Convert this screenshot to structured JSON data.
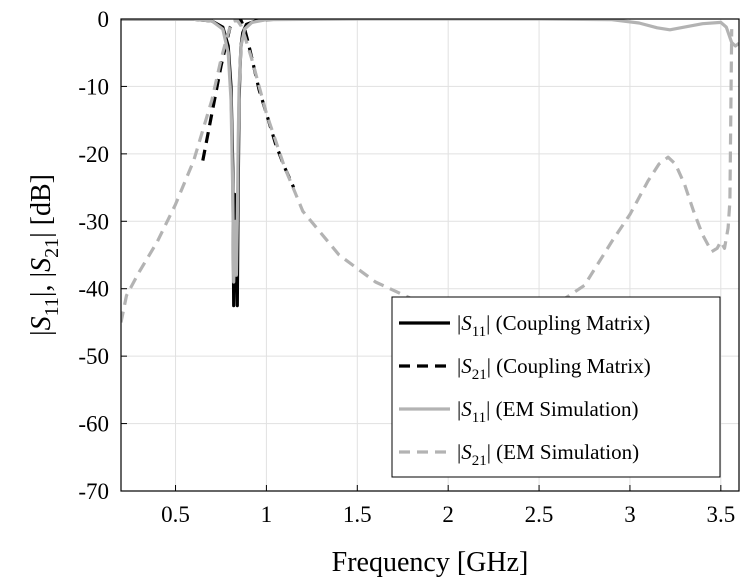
{
  "chart_data": {
    "type": "line",
    "xlabel": "Frequency [GHz]",
    "ylabel": "|S11|, |S21| [dB]",
    "xlim": [
      0.2,
      3.6
    ],
    "ylim": [
      -70,
      0
    ],
    "xticks": [
      0.5,
      1,
      1.5,
      2,
      2.5,
      3,
      3.5
    ],
    "xtick_labels": [
      "0.5",
      "1",
      "1.5",
      "2",
      "2.5",
      "3",
      "3.5"
    ],
    "yticks": [
      0,
      -10,
      -20,
      -30,
      -40,
      -50,
      -60,
      -70
    ],
    "ytick_labels": [
      "0",
      "-10",
      "-20",
      "-30",
      "-40",
      "-50",
      "-60",
      "-70"
    ],
    "grid": true,
    "legend_position": "bottom-right",
    "series": [
      {
        "name": "|S11| (Coupling Matrix)",
        "legend_sub": "11",
        "legend_suffix": " (Coupling Matrix)",
        "color": "#000000",
        "style": "solid",
        "x": [
          0.2,
          0.6,
          0.7,
          0.76,
          0.79,
          0.805,
          0.815,
          0.82,
          0.825,
          0.83,
          0.835,
          0.84,
          0.845,
          0.85,
          0.855,
          0.86,
          0.87,
          0.89,
          0.95,
          1.05
        ],
        "y": [
          -0.02,
          -0.05,
          -0.3,
          -1.2,
          -4,
          -10,
          -22,
          -42.5,
          -26,
          -26.5,
          -36,
          -42.5,
          -25,
          -12,
          -7,
          -4,
          -2,
          -0.8,
          -0.2,
          -0.05
        ]
      },
      {
        "name": "|S21| (Coupling Matrix)",
        "legend_sub": "21",
        "legend_suffix": " (Coupling Matrix)",
        "color": "#000000",
        "style": "dashed",
        "x": [
          0.65,
          0.7,
          0.75,
          0.78,
          0.8,
          0.82,
          0.84,
          0.86,
          0.88,
          0.9,
          0.93,
          0.96,
          1.0,
          1.05,
          1.1,
          1.15
        ],
        "y": [
          -21,
          -14,
          -7,
          -3.5,
          -1.2,
          -0.2,
          -0.1,
          -0.2,
          -1.5,
          -3.5,
          -7,
          -10.5,
          -14,
          -18.5,
          -22,
          -25
        ]
      },
      {
        "name": "|S11| (EM Simulation)",
        "legend_sub": "11",
        "legend_suffix": " (EM Simulation)",
        "color": "#b3b3b3",
        "style": "solid",
        "x": [
          0.2,
          0.6,
          0.7,
          0.76,
          0.79,
          0.805,
          0.815,
          0.82,
          0.825,
          0.83,
          0.835,
          0.84,
          0.845,
          0.85,
          0.86,
          0.88,
          0.92,
          1.0,
          1.5,
          2.0,
          2.5,
          2.9,
          3.05,
          3.15,
          3.22,
          3.3,
          3.4,
          3.5,
          3.53,
          3.56,
          3.58,
          3.6
        ],
        "y": [
          -0.02,
          -0.05,
          -0.3,
          -1.5,
          -5,
          -12,
          -26,
          -39,
          -34,
          -30,
          -38,
          -30,
          -18,
          -10,
          -4,
          -1.5,
          -0.5,
          -0.1,
          0,
          0,
          0,
          -0.1,
          -0.6,
          -1.3,
          -1.6,
          -1.2,
          -0.7,
          -0.5,
          -1.2,
          -3.5,
          -4,
          -3.6
        ]
      },
      {
        "name": "|S21| (EM Simulation)",
        "legend_sub": "21",
        "legend_suffix": " (EM Simulation)",
        "color": "#b3b3b3",
        "style": "dashed",
        "x": [
          0.2,
          0.23,
          0.3,
          0.4,
          0.5,
          0.6,
          0.7,
          0.75,
          0.78,
          0.8,
          0.82,
          0.84,
          0.86,
          0.88,
          0.92,
          1.0,
          1.1,
          1.2,
          1.4,
          1.6,
          1.8,
          2.0,
          2.2,
          2.5,
          2.75,
          2.9,
          3.0,
          3.1,
          3.16,
          3.21,
          3.25,
          3.3,
          3.35,
          3.4,
          3.45,
          3.48,
          3.5,
          3.52,
          3.54,
          3.55,
          3.56
        ],
        "y": [
          -45,
          -41,
          -37.5,
          -33,
          -27.5,
          -21,
          -12,
          -6,
          -3,
          -1.2,
          -0.3,
          -0.2,
          -1,
          -2.5,
          -6,
          -14,
          -22,
          -28.5,
          -35,
          -39,
          -41.5,
          -43.5,
          -44.5,
          -44,
          -39.5,
          -33,
          -29,
          -24,
          -21.5,
          -20.5,
          -21.5,
          -24.5,
          -28.5,
          -32,
          -34.5,
          -34,
          -33,
          -34,
          -31,
          -27,
          -1.5
        ]
      }
    ]
  }
}
